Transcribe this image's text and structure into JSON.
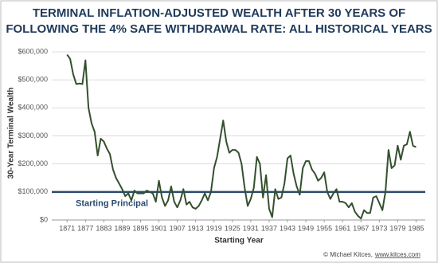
{
  "chart_data": {
    "type": "line",
    "title": [
      "TERMINAL INFLATION-ADJUSTED WEALTH AFTER 30 YEARS OF",
      "FOLLOWING THE 4% SAFE WITHDRAWAL RATE: ALL HISTORICAL YEARS"
    ],
    "y_label": "30-Year Terminal Wealth",
    "x_label": "Starting Year",
    "credit": "© Michael Kitces,",
    "credit_link": "www.kitces.com",
    "color": "#34502e",
    "x": [
      1871,
      1872,
      1873,
      1874,
      1875,
      1876,
      1877,
      1878,
      1879,
      1880,
      1881,
      1882,
      1883,
      1884,
      1885,
      1886,
      1887,
      1888,
      1889,
      1890,
      1891,
      1892,
      1893,
      1894,
      1895,
      1896,
      1897,
      1898,
      1899,
      1900,
      1901,
      1902,
      1903,
      1904,
      1905,
      1906,
      1907,
      1908,
      1909,
      1910,
      1911,
      1912,
      1913,
      1914,
      1915,
      1916,
      1917,
      1918,
      1919,
      1920,
      1921,
      1922,
      1923,
      1924,
      1925,
      1926,
      1927,
      1928,
      1929,
      1930,
      1931,
      1932,
      1933,
      1934,
      1935,
      1936,
      1937,
      1938,
      1939,
      1940,
      1941,
      1942,
      1943,
      1944,
      1945,
      1946,
      1947,
      1948,
      1949,
      1950,
      1951,
      1952,
      1953,
      1954,
      1955,
      1956,
      1957,
      1958,
      1959,
      1960,
      1961,
      1962,
      1963,
      1964,
      1965,
      1966,
      1967,
      1968,
      1969,
      1970,
      1971,
      1972,
      1973,
      1974,
      1975,
      1976,
      1977,
      1978,
      1979,
      1980,
      1981,
      1982,
      1983,
      1984,
      1985
    ],
    "values": [
      590000,
      575000,
      520000,
      485000,
      487000,
      485000,
      570000,
      400000,
      345000,
      315000,
      230000,
      290000,
      280000,
      255000,
      235000,
      180000,
      150000,
      130000,
      110000,
      85000,
      95000,
      70000,
      105000,
      95000,
      95000,
      95000,
      105000,
      100000,
      95000,
      65000,
      140000,
      80000,
      50000,
      70000,
      120000,
      65000,
      45000,
      70000,
      110000,
      55000,
      65000,
      45000,
      40000,
      50000,
      70000,
      95000,
      70000,
      100000,
      185000,
      225000,
      290000,
      355000,
      280000,
      240000,
      250000,
      250000,
      240000,
      200000,
      115000,
      50000,
      75000,
      115000,
      225000,
      200000,
      80000,
      160000,
      40000,
      10000,
      110000,
      75000,
      80000,
      130000,
      220000,
      230000,
      165000,
      120000,
      90000,
      185000,
      210000,
      210000,
      180000,
      165000,
      140000,
      150000,
      170000,
      100000,
      75000,
      95000,
      110000,
      65000,
      65000,
      60000,
      45000,
      60000,
      30000,
      15000,
      5000,
      35000,
      25000,
      25000,
      80000,
      85000,
      60000,
      35000,
      100000,
      250000,
      185000,
      195000,
      265000,
      215000,
      265000,
      270000,
      315000,
      265000,
      260000
    ],
    "xlim": [
      1866,
      1988
    ],
    "xticks": [
      1871,
      1877,
      1883,
      1889,
      1895,
      1901,
      1907,
      1913,
      1919,
      1925,
      1931,
      1937,
      1943,
      1949,
      1955,
      1961,
      1967,
      1973,
      1979,
      1985
    ],
    "ylim": [
      0,
      620000
    ],
    "yticks": [
      {
        "value": 0,
        "label": "$0"
      },
      {
        "value": 100000,
        "label": "$100,000"
      },
      {
        "value": 200000,
        "label": "$200,000"
      },
      {
        "value": 300000,
        "label": "$300,000"
      },
      {
        "value": 400000,
        "label": "$400,000"
      },
      {
        "value": 500000,
        "label": "$500,000"
      },
      {
        "value": 600000,
        "label": "$600,000"
      }
    ],
    "grid": true,
    "reference_line": {
      "value": 100000,
      "label": "Starting Principal",
      "color": "#2b4a6e"
    }
  }
}
